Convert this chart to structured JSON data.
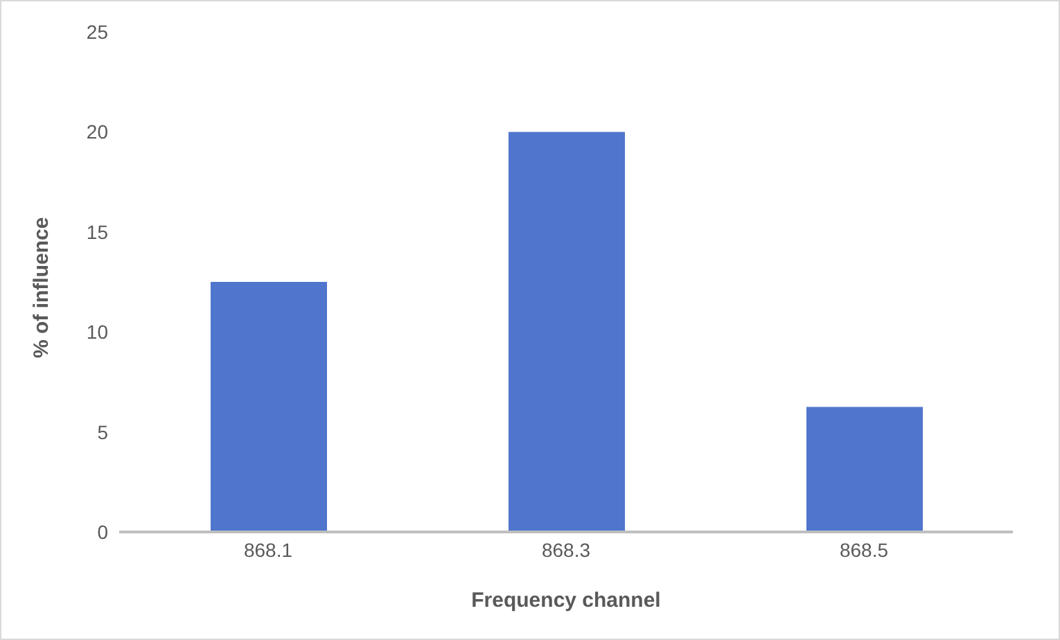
{
  "chart_data": {
    "type": "bar",
    "xlabel": "Frequency channel",
    "ylabel": "% of influence",
    "categories": [
      "868.1",
      "868.3",
      "868.5"
    ],
    "values": [
      12.5,
      20,
      6.25
    ],
    "color": "#4f76cc",
    "ylim": [
      0,
      25
    ],
    "yticks": [
      0,
      5,
      10,
      15,
      20,
      25
    ],
    "grid": false,
    "legend": false
  }
}
